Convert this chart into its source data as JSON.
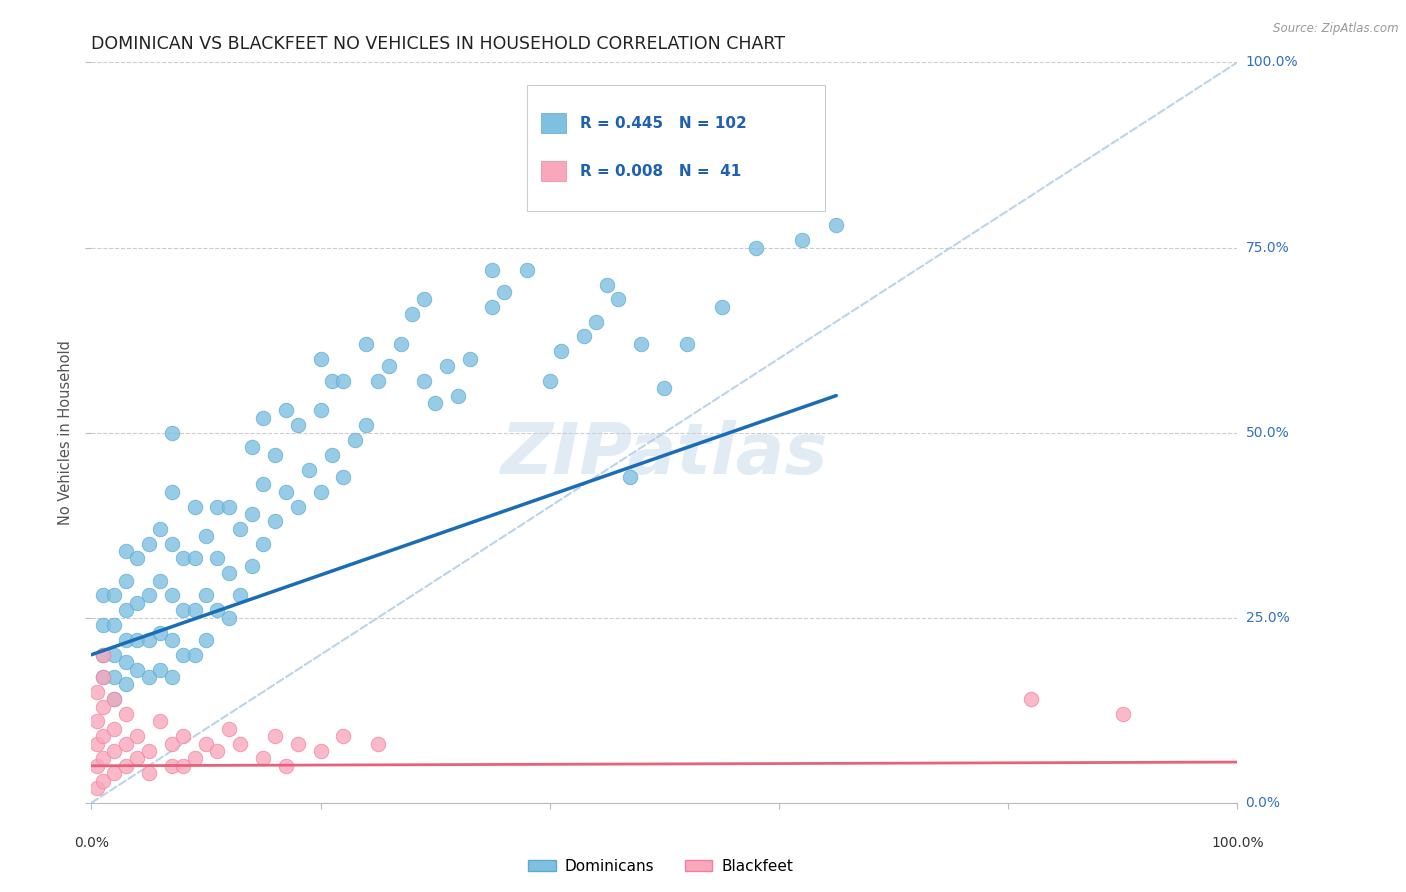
{
  "title": "DOMINICAN VS BLACKFEET NO VEHICLES IN HOUSEHOLD CORRELATION CHART",
  "source": "Source: ZipAtlas.com",
  "ylabel": "No Vehicles in Household",
  "watermark": "ZIPatlas",
  "dominican_R": 0.445,
  "dominican_N": 102,
  "blackfeet_R": 0.008,
  "blackfeet_N": 41,
  "dominican_color": "#7fbfdf",
  "dominican_edge_color": "#5aaacf",
  "blackfeet_color": "#f9a8bb",
  "blackfeet_edge_color": "#f080a0",
  "dominican_line_color": "#1a6db5",
  "blackfeet_line_color": "#e8607a",
  "ref_line_color": "#b0cce8",
  "dominican_x": [
    1,
    1,
    1,
    1,
    2,
    2,
    2,
    2,
    2,
    3,
    3,
    3,
    3,
    3,
    3,
    4,
    4,
    4,
    4,
    5,
    5,
    5,
    5,
    6,
    6,
    6,
    6,
    7,
    7,
    7,
    7,
    7,
    7,
    8,
    8,
    8,
    9,
    9,
    9,
    9,
    10,
    10,
    10,
    11,
    11,
    11,
    12,
    12,
    12,
    13,
    13,
    14,
    14,
    14,
    15,
    15,
    15,
    16,
    16,
    17,
    17,
    18,
    18,
    19,
    20,
    20,
    20,
    21,
    21,
    22,
    22,
    23,
    24,
    24,
    25,
    26,
    27,
    28,
    29,
    29,
    30,
    31,
    32,
    33,
    35,
    35,
    36,
    38,
    40,
    41,
    43,
    44,
    45,
    46,
    47,
    48,
    50,
    52,
    55,
    58,
    62,
    65
  ],
  "dominican_y": [
    17,
    20,
    24,
    28,
    14,
    17,
    20,
    24,
    28,
    16,
    19,
    22,
    26,
    30,
    34,
    18,
    22,
    27,
    33,
    17,
    22,
    28,
    35,
    18,
    23,
    30,
    37,
    17,
    22,
    28,
    35,
    42,
    50,
    20,
    26,
    33,
    20,
    26,
    33,
    40,
    22,
    28,
    36,
    26,
    33,
    40,
    25,
    31,
    40,
    28,
    37,
    32,
    39,
    48,
    35,
    43,
    52,
    38,
    47,
    42,
    53,
    40,
    51,
    45,
    42,
    53,
    60,
    47,
    57,
    44,
    57,
    49,
    51,
    62,
    57,
    59,
    62,
    66,
    57,
    68,
    54,
    59,
    55,
    60,
    67,
    72,
    69,
    72,
    57,
    61,
    63,
    65,
    70,
    68,
    44,
    62,
    56,
    62,
    67,
    75,
    76,
    78
  ],
  "blackfeet_x": [
    0.5,
    0.5,
    0.5,
    0.5,
    0.5,
    1,
    1,
    1,
    1,
    1,
    1,
    2,
    2,
    2,
    2,
    3,
    3,
    3,
    4,
    4,
    5,
    5,
    6,
    7,
    7,
    8,
    8,
    9,
    10,
    11,
    12,
    13,
    15,
    16,
    17,
    18,
    20,
    22,
    25,
    82,
    90
  ],
  "blackfeet_y": [
    2,
    5,
    8,
    11,
    15,
    3,
    6,
    9,
    13,
    17,
    20,
    4,
    7,
    10,
    14,
    5,
    8,
    12,
    6,
    9,
    4,
    7,
    11,
    5,
    8,
    5,
    9,
    6,
    8,
    7,
    10,
    8,
    6,
    9,
    5,
    8,
    7,
    9,
    8,
    14,
    12
  ],
  "dominican_trend_x": [
    0,
    65
  ],
  "dominican_trend_y": [
    20,
    55
  ],
  "blackfeet_trend_x": [
    0,
    100
  ],
  "blackfeet_trend_y": [
    5,
    5.5
  ],
  "ref_line_x": [
    0,
    100
  ],
  "ref_line_y": [
    0,
    100
  ],
  "xlim": [
    0,
    100
  ],
  "ylim": [
    0,
    100
  ],
  "yticks": [
    0,
    25,
    50,
    75,
    100
  ],
  "ytick_labels_right": [
    "0.0%",
    "25.0%",
    "50.0%",
    "75.0%",
    "100.0%"
  ],
  "background_color": "#ffffff",
  "grid_color": "#cccccc",
  "title_fontsize": 12.5,
  "axis_label_fontsize": 10.5,
  "tick_fontsize": 10,
  "watermark_fontsize": 52,
  "watermark_color": "#c5d8ea",
  "watermark_alpha": 0.5
}
